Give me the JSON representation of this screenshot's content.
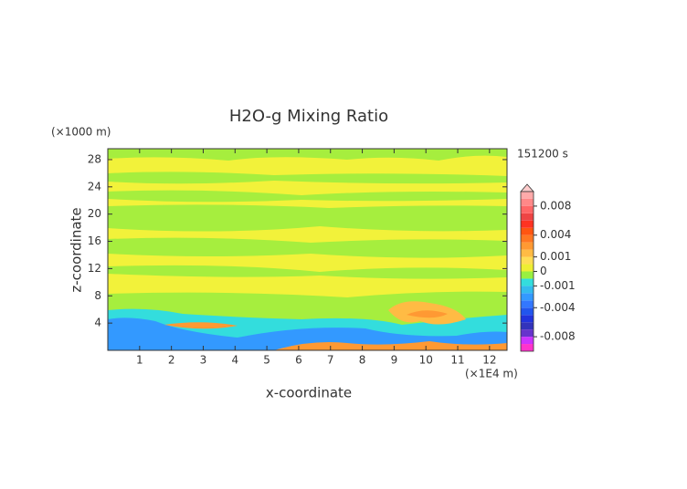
{
  "chart_data": {
    "type": "contour",
    "title": "H2O-g Mixing Ratio",
    "x_label": "x-coordinate",
    "y_label": "z-coordinate",
    "x_unit": "(×1E4 m)",
    "y_unit": "(×1000 m)",
    "time_label": "151200 s",
    "xlim": [
      0,
      12.55
    ],
    "xticks": [
      1,
      2,
      3,
      4,
      5,
      6,
      7,
      8,
      9,
      10,
      11,
      12
    ],
    "ylim": [
      0,
      29.6
    ],
    "yticks": [
      4,
      8,
      12,
      16,
      20,
      24,
      28
    ],
    "colorbar": {
      "levels": [
        -0.01,
        -0.009,
        -0.008,
        -0.007,
        -0.006,
        -0.005,
        -0.004,
        -0.003,
        -0.002,
        -0.001,
        -0.0005,
        0,
        0.0005,
        0.001,
        0.002,
        0.003,
        0.004,
        0.005,
        0.006,
        0.007,
        0.008,
        0.009,
        0.01
      ],
      "colors": [
        "#ff33cc",
        "#cc33ff",
        "#6633cc",
        "#3333bb",
        "#2233dd",
        "#2255ee",
        "#3377ff",
        "#3399ff",
        "#33bbee",
        "#33dddd",
        "#99f040",
        "#eeee33",
        "#ffdd55",
        "#ffbb44",
        "#ff9933",
        "#ff7722",
        "#ff5511",
        "#ff3322",
        "#ee4444",
        "#ff6666",
        "#ff8888",
        "#ffaaaa"
      ],
      "ticks": [
        0.008,
        0.004,
        0.001,
        0,
        -0.001,
        -0.004,
        -0.008
      ]
    }
  }
}
